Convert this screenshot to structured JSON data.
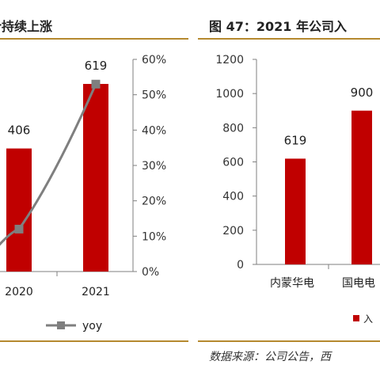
{
  "left_panel": {
    "title": "价持续上涨"
  },
  "right_panel": {
    "title": "图 47：2021 年公司入",
    "source": "数据来源：公司公告，西"
  },
  "chart_data": [
    {
      "type": "bar",
      "categories": [
        "2020",
        "2021"
      ],
      "series": [
        {
          "values": [
            406,
            619
          ],
          "color": "#c00000"
        },
        {
          "name": "yoy",
          "type": "line",
          "values": [
            12,
            53
          ],
          "color": "#7f7f7f"
        }
      ],
      "data_labels": [
        "406",
        "619"
      ],
      "y2_tick_labels": [
        "0%",
        "10%",
        "20%",
        "30%",
        "40%",
        "50%",
        "60%"
      ],
      "y2lim": [
        0,
        60
      ],
      "ylim": [
        0,
        700
      ],
      "legend": {
        "position": "bottom",
        "entries": [
          "yoy"
        ]
      }
    },
    {
      "type": "bar",
      "categories": [
        "内蒙华电",
        "国电电"
      ],
      "series": [
        {
          "name": "入",
          "values": [
            619,
            900
          ],
          "color": "#c00000"
        }
      ],
      "data_labels": [
        "619",
        "900"
      ],
      "y_tick_labels": [
        "0",
        "200",
        "400",
        "600",
        "800",
        "1000",
        "1200"
      ],
      "ylim": [
        0,
        1200
      ],
      "legend": {
        "position": "bottom",
        "entries": [
          "入"
        ]
      }
    }
  ]
}
